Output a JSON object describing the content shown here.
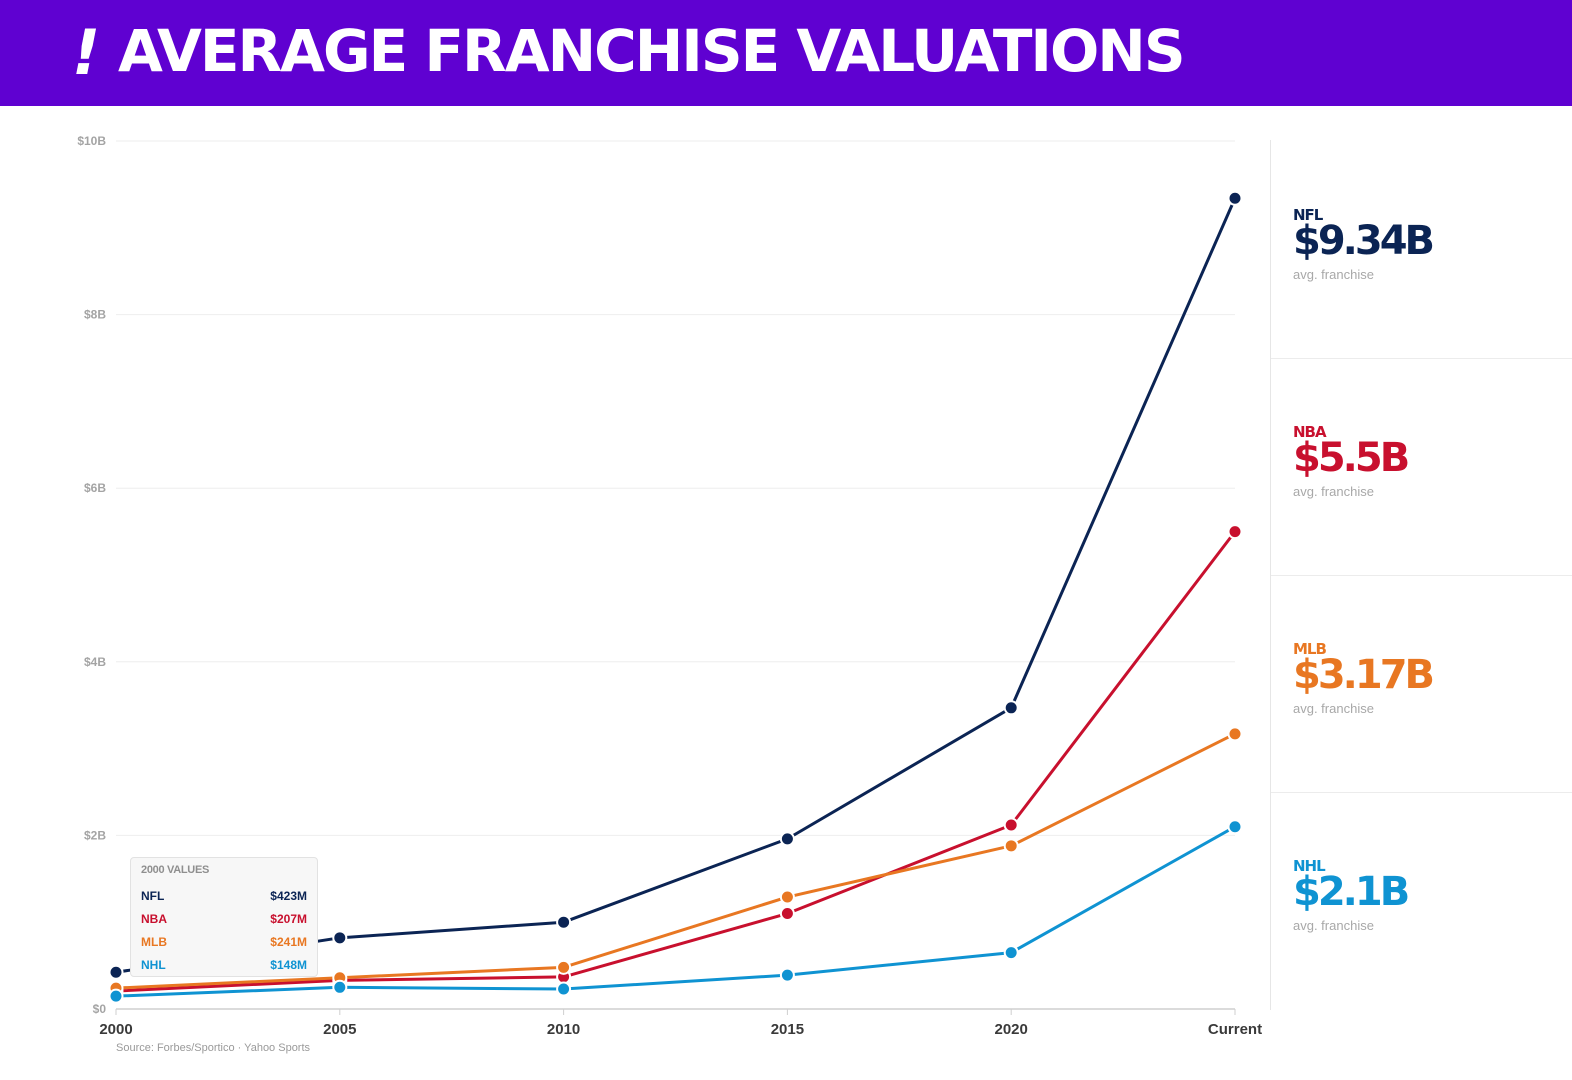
{
  "header": {
    "logo_mark": "!",
    "title": "AVERAGE FRANCHISE VALUATIONS",
    "background_color": "#5f01d1"
  },
  "source": "Source: Forbes/Sportico · Yahoo Sports",
  "tooltip": {
    "title": "2000 VALUES",
    "rows": [
      {
        "league": "NFL",
        "value": "$423M",
        "color": "#0b2454"
      },
      {
        "league": "NBA",
        "value": "$207M",
        "color": "#c8102e"
      },
      {
        "league": "MLB",
        "value": "$241M",
        "color": "#e87722"
      },
      {
        "league": "NHL",
        "value": "$148M",
        "color": "#0f93d2"
      }
    ]
  },
  "summary": [
    {
      "league": "NFL",
      "value": "$9.34B",
      "caption": "avg. franchise",
      "color": "#0b2454"
    },
    {
      "league": "NBA",
      "value": "$5.5B",
      "caption": "avg. franchise",
      "color": "#c8102e"
    },
    {
      "league": "MLB",
      "value": "$3.17B",
      "caption": "avg. franchise",
      "color": "#e87722"
    },
    {
      "league": "NHL",
      "value": "$2.1B",
      "caption": "avg. franchise",
      "color": "#0f93d2"
    }
  ],
  "chart_data": {
    "type": "line",
    "title": "AVERAGE FRANCHISE VALUATIONS",
    "xlabel": "",
    "ylabel": "",
    "x": [
      "2000",
      "2005",
      "2010",
      "2015",
      "2020",
      "Current"
    ],
    "ylim": [
      0,
      10
    ],
    "y_unit": "billions USD",
    "y_ticks": [
      0,
      2,
      4,
      6,
      8,
      10
    ],
    "y_tick_labels": [
      "$0",
      "$2B",
      "$4B",
      "$6B",
      "$8B",
      "$10B"
    ],
    "grid": true,
    "series": [
      {
        "name": "NFL",
        "color": "#0b2454",
        "values": [
          0.423,
          0.82,
          1.0,
          1.96,
          3.47,
          9.34
        ]
      },
      {
        "name": "NBA",
        "color": "#c8102e",
        "values": [
          0.207,
          0.33,
          0.37,
          1.1,
          2.12,
          5.5
        ]
      },
      {
        "name": "MLB",
        "color": "#e87722",
        "values": [
          0.241,
          0.36,
          0.48,
          1.29,
          1.88,
          3.17
        ]
      },
      {
        "name": "NHL",
        "color": "#0f93d2",
        "values": [
          0.148,
          0.25,
          0.23,
          0.39,
          0.65,
          2.1
        ]
      }
    ]
  }
}
